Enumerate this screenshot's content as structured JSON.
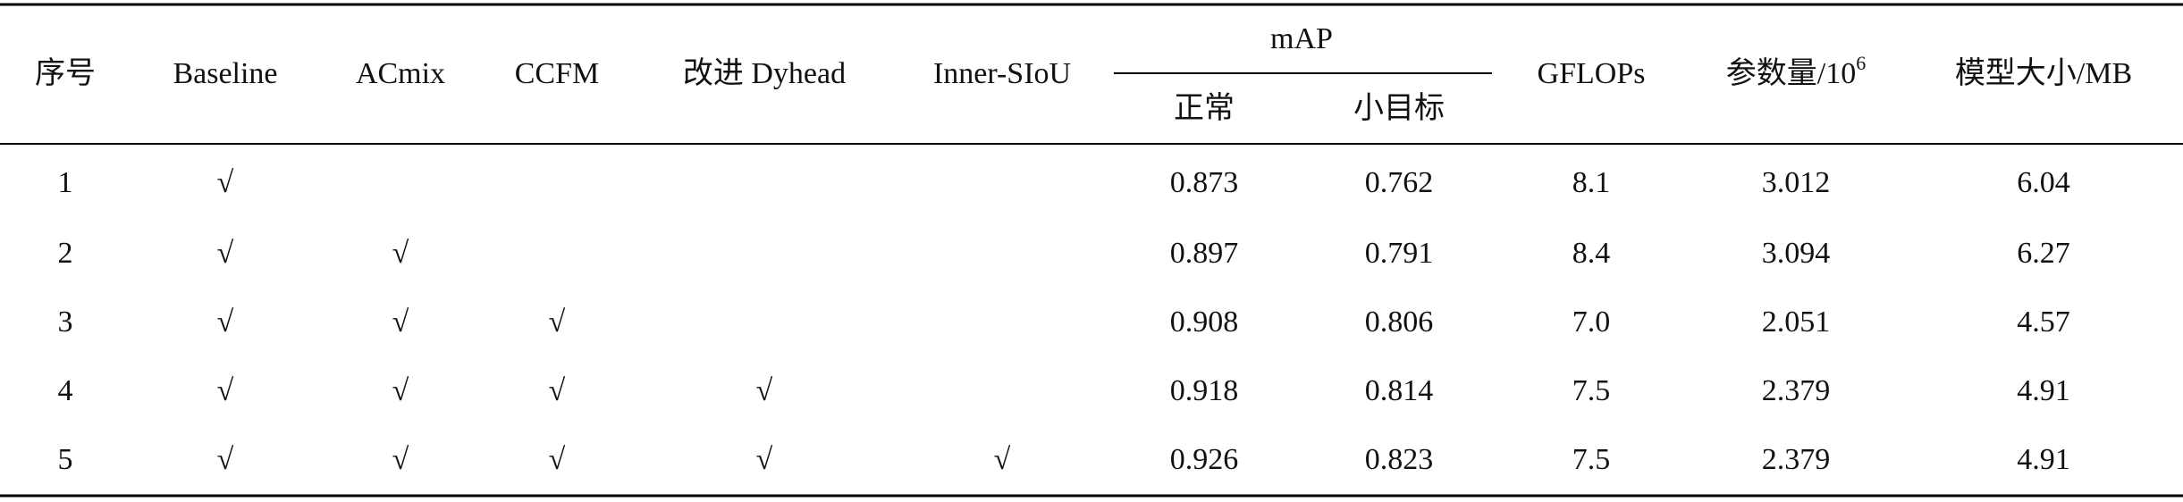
{
  "table": {
    "header": {
      "index": "序号",
      "baseline": "Baseline",
      "acmix": "ACmix",
      "ccfm": "CCFM",
      "dyhead": "改进 Dyhead",
      "inner_siou": "Inner-SIoU",
      "map": "mAP",
      "map_normal": "正常",
      "map_small": "小目标",
      "gflops": "GFLOPs",
      "params": {
        "base": "参数量/10",
        "exponent": "6"
      },
      "size": "模型大小/MB"
    },
    "rows": [
      [
        "1",
        "√",
        null,
        null,
        null,
        null,
        "0.873",
        "0.762",
        "8.1",
        "3.012",
        "6.04"
      ],
      [
        "2",
        "√",
        "√",
        null,
        null,
        null,
        "0.897",
        "0.791",
        "8.4",
        "3.094",
        "6.27"
      ],
      [
        "3",
        "√",
        "√",
        "√",
        null,
        null,
        "0.908",
        "0.806",
        "7.0",
        "2.051",
        "4.57"
      ],
      [
        "4",
        "√",
        "√",
        "√",
        "√",
        null,
        "0.918",
        "0.814",
        "7.5",
        "2.379",
        "4.91"
      ],
      [
        "5",
        "√",
        "√",
        "√",
        "√",
        "√",
        "0.926",
        "0.823",
        "7.5",
        "2.379",
        "4.91"
      ]
    ]
  }
}
